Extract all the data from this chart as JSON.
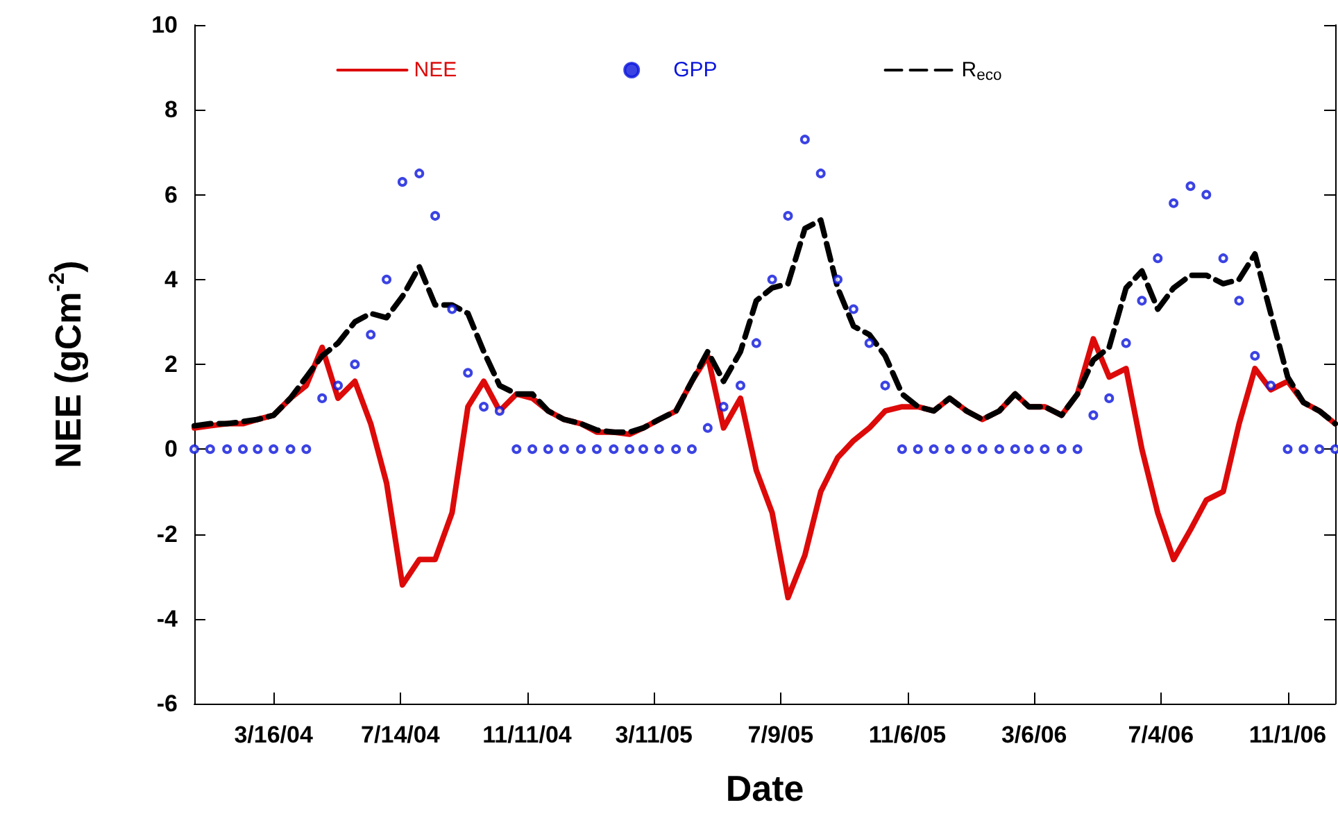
{
  "chart_data": {
    "type": "line",
    "xlabel": "Date",
    "ylabel": "NEE (gCm$^{-2}$)",
    "x": [
      "2004-01-01",
      "2004-01-16",
      "2004-02-01",
      "2004-02-16",
      "2004-03-01",
      "2004-03-16",
      "2004-04-01",
      "2004-04-16",
      "2004-05-01",
      "2004-05-16",
      "2004-06-01",
      "2004-06-16",
      "2004-07-01",
      "2004-07-16",
      "2004-08-01",
      "2004-08-16",
      "2004-09-01",
      "2004-09-16",
      "2004-10-01",
      "2004-10-16",
      "2004-11-01",
      "2004-11-16",
      "2004-12-01",
      "2004-12-16",
      "2005-01-01",
      "2005-01-16",
      "2005-02-01",
      "2005-02-16",
      "2005-03-01",
      "2005-03-16",
      "2005-04-01",
      "2005-04-16",
      "2005-05-01",
      "2005-05-16",
      "2005-06-01",
      "2005-06-16",
      "2005-07-01",
      "2005-07-16",
      "2005-08-01",
      "2005-08-16",
      "2005-09-01",
      "2005-09-16",
      "2005-10-01",
      "2005-10-16",
      "2005-11-01",
      "2005-11-16",
      "2005-12-01",
      "2005-12-16",
      "2006-01-01",
      "2006-01-16",
      "2006-02-01",
      "2006-02-16",
      "2006-03-01",
      "2006-03-16",
      "2006-04-01",
      "2006-04-16",
      "2006-05-01",
      "2006-05-16",
      "2006-06-01",
      "2006-06-16",
      "2006-07-01",
      "2006-07-16",
      "2006-08-01",
      "2006-08-16",
      "2006-09-01",
      "2006-09-16",
      "2006-10-01",
      "2006-10-16",
      "2006-11-01",
      "2006-11-16",
      "2006-12-01",
      "2006-12-16"
    ],
    "series": [
      {
        "name": "NEE",
        "color": "#dd0a0a",
        "line_style": "solid",
        "values": [
          0.5,
          0.55,
          0.6,
          0.6,
          0.7,
          0.8,
          1.2,
          1.5,
          2.4,
          1.2,
          1.6,
          0.6,
          -0.8,
          -3.2,
          -2.6,
          -2.6,
          -1.5,
          1.0,
          1.6,
          0.9,
          1.3,
          1.2,
          0.9,
          0.7,
          0.6,
          0.4,
          0.4,
          0.35,
          0.5,
          0.7,
          0.9,
          1.6,
          2.2,
          0.5,
          1.2,
          -0.5,
          -1.5,
          -3.5,
          -2.5,
          -1.0,
          -0.2,
          0.2,
          0.5,
          0.9,
          1.0,
          1.0,
          0.9,
          1.2,
          0.9,
          0.7,
          0.9,
          1.3,
          1.0,
          1.0,
          0.8,
          1.3,
          2.6,
          1.7,
          1.9,
          0.0,
          -1.5,
          -2.6,
          -1.9,
          -1.2,
          -1.0,
          0.6,
          1.9,
          1.4,
          1.6,
          1.1,
          0.9,
          0.6
        ]
      },
      {
        "name": "GPP",
        "type": "scatter",
        "color": "#0a14dc",
        "marker": "circle",
        "values": [
          0,
          0,
          0,
          0,
          0,
          0,
          0,
          0,
          1.2,
          1.5,
          2.0,
          2.7,
          4.0,
          6.3,
          6.5,
          5.5,
          3.3,
          1.8,
          1.0,
          0.9,
          0,
          0,
          0,
          0,
          0,
          0,
          0,
          0,
          0,
          0,
          0,
          0,
          0.5,
          1.0,
          1.5,
          2.5,
          4.0,
          5.5,
          7.3,
          6.5,
          4.0,
          3.3,
          2.5,
          1.5,
          0,
          0,
          0,
          0,
          0,
          0,
          0,
          0,
          0,
          0,
          0,
          0,
          0.8,
          1.2,
          2.5,
          3.5,
          4.5,
          5.8,
          6.2,
          6.0,
          4.5,
          3.5,
          2.2,
          1.5,
          0,
          0,
          0,
          0
        ]
      },
      {
        "name": "R$_{eco}$",
        "color": "#000000",
        "line_style": "dashed",
        "values": [
          0.55,
          0.6,
          0.6,
          0.65,
          0.7,
          0.8,
          1.2,
          1.7,
          2.2,
          2.5,
          3.0,
          3.2,
          3.1,
          3.6,
          4.3,
          3.4,
          3.4,
          3.2,
          2.3,
          1.5,
          1.3,
          1.3,
          0.9,
          0.7,
          0.6,
          0.45,
          0.4,
          0.4,
          0.5,
          0.7,
          0.9,
          1.6,
          2.3,
          1.6,
          2.3,
          3.5,
          3.8,
          3.9,
          5.2,
          5.4,
          3.8,
          2.9,
          2.7,
          2.2,
          1.3,
          1.0,
          0.9,
          1.2,
          0.9,
          0.7,
          0.9,
          1.3,
          1.0,
          1.0,
          0.8,
          1.3,
          2.1,
          2.4,
          3.8,
          4.2,
          3.3,
          3.8,
          4.1,
          4.1,
          3.9,
          4.0,
          4.6,
          3.2,
          1.7,
          1.1,
          0.9,
          0.6
        ]
      }
    ],
    "xlim": [
      "2004-01-01",
      "2006-12-16"
    ],
    "xticks": [
      {
        "value": "2004-03-16",
        "label": "3/16/04"
      },
      {
        "value": "2004-07-14",
        "label": "7/14/04"
      },
      {
        "value": "2004-11-11",
        "label": "11/11/04"
      },
      {
        "value": "2005-03-11",
        "label": "3/11/05"
      },
      {
        "value": "2005-07-09",
        "label": "7/9/05"
      },
      {
        "value": "2005-11-06",
        "label": "11/6/05"
      },
      {
        "value": "2006-03-06",
        "label": "3/6/06"
      },
      {
        "value": "2006-07-04",
        "label": "7/4/06"
      },
      {
        "value": "2006-11-01",
        "label": "11/1/06"
      }
    ],
    "ylim": [
      -6,
      10
    ],
    "yticks": [
      -6,
      -4,
      -2,
      0,
      2,
      4,
      6,
      8,
      10
    ],
    "grid": false,
    "legend": "top"
  }
}
